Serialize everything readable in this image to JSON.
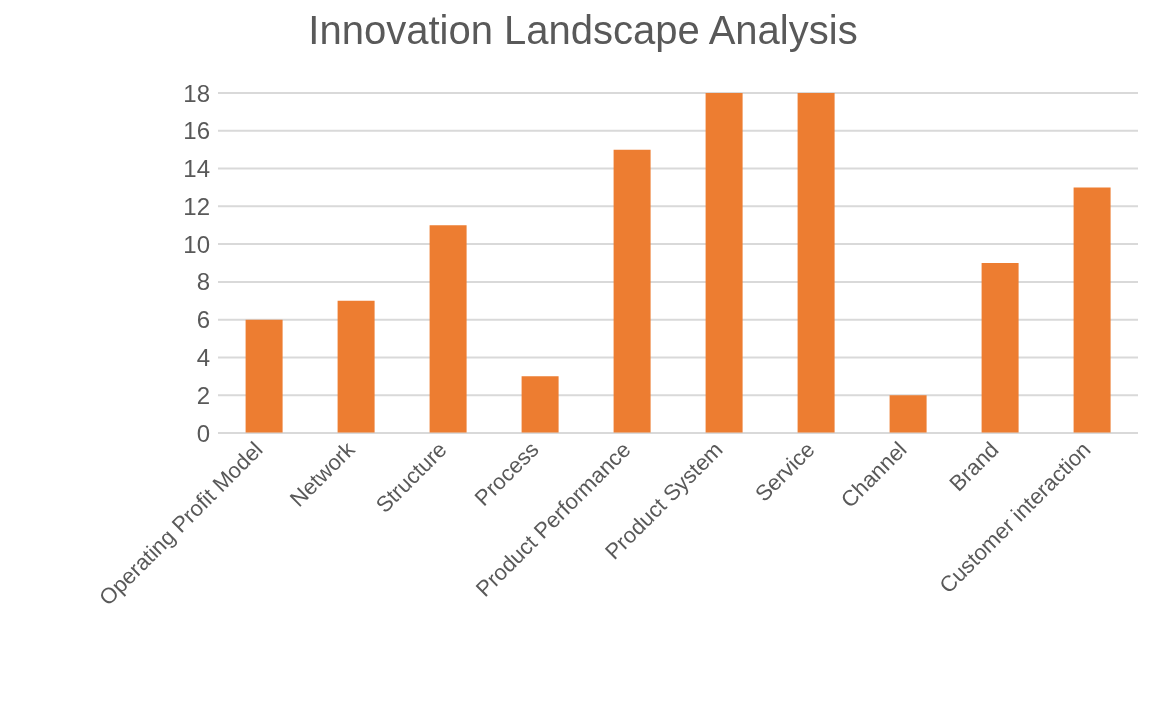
{
  "chart_data": {
    "type": "bar",
    "title": "Innovation Landscape Analysis",
    "categories": [
      "Operating Profit Model",
      "Network",
      "Structure",
      "Process",
      "Product Performance",
      "Product System",
      "Service",
      "Channel",
      "Brand",
      "Customer interaction"
    ],
    "values": [
      6,
      7,
      11,
      3,
      15,
      18,
      18,
      2,
      9,
      13
    ],
    "color": "#ed7d31",
    "ylim": [
      0,
      18
    ],
    "yticks": [
      0,
      2,
      4,
      6,
      8,
      10,
      12,
      14,
      16,
      18
    ],
    "grid": "y"
  }
}
